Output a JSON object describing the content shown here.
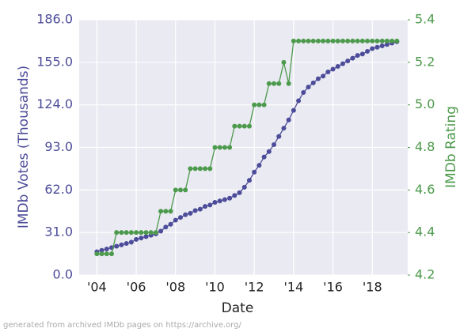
{
  "chart_data": {
    "type": "line",
    "x_label": "Date",
    "y_label": "IMDb Votes (Thousands)",
    "y2_label": "IMDb Rating",
    "footer": "generated from archived IMDb pages on https://archive.org/",
    "x": [
      2004,
      2004.25,
      2004.5,
      2004.75,
      2005,
      2005.25,
      2005.5,
      2005.75,
      2006,
      2006.25,
      2006.5,
      2006.75,
      2007,
      2007.25,
      2007.5,
      2007.75,
      2008,
      2008.25,
      2008.5,
      2008.75,
      2009,
      2009.25,
      2009.5,
      2009.75,
      2010,
      2010.25,
      2010.5,
      2010.75,
      2011,
      2011.25,
      2011.5,
      2011.75,
      2012,
      2012.25,
      2012.5,
      2012.75,
      2013,
      2013.25,
      2013.5,
      2013.75,
      2014,
      2014.25,
      2014.5,
      2014.75,
      2015,
      2015.25,
      2015.5,
      2015.75,
      2016,
      2016.25,
      2016.5,
      2016.75,
      2017,
      2017.25,
      2017.5,
      2017.75,
      2018,
      2018.25,
      2018.5,
      2018.75,
      2019,
      2019.25
    ],
    "series": [
      {
        "name": "IMDb Votes (Thousands)",
        "color": "#4c4c9a",
        "values": [
          17,
          18,
          19,
          20,
          21,
          22,
          23,
          24,
          26,
          27,
          28,
          29,
          30,
          32,
          35,
          37,
          40,
          42,
          44,
          45,
          47,
          48,
          50,
          51,
          53,
          54,
          55,
          56,
          58,
          60,
          64,
          69,
          75,
          80,
          86,
          90,
          95,
          101,
          107,
          113,
          120,
          127,
          133,
          137,
          140,
          143,
          145,
          148,
          150,
          152,
          154,
          156,
          158,
          160,
          161,
          163,
          165,
          166,
          167,
          168,
          169,
          170
        ]
      },
      {
        "name": "IMDb Rating",
        "color": "#4c9a4c",
        "axis": "y2",
        "values": [
          4.3,
          4.3,
          4.3,
          4.3,
          4.4,
          4.4,
          4.4,
          4.4,
          4.4,
          4.4,
          4.4,
          4.4,
          4.4,
          4.5,
          4.5,
          4.5,
          4.6,
          4.6,
          4.6,
          4.7,
          4.7,
          4.7,
          4.7,
          4.7,
          4.8,
          4.8,
          4.8,
          4.8,
          4.9,
          4.9,
          4.9,
          4.9,
          5.0,
          5.0,
          5.0,
          5.1,
          5.1,
          5.1,
          5.2,
          5.1,
          5.3,
          5.3,
          5.3,
          5.3,
          5.3,
          5.3,
          5.3,
          5.3,
          5.3,
          5.3,
          5.3,
          5.3,
          5.3,
          5.3,
          5.3,
          5.3,
          5.3,
          5.3,
          5.3,
          5.3,
          5.3,
          5.3
        ]
      }
    ],
    "xlim": [
      2003.1,
      2019.8
    ],
    "xticks": [
      {
        "value": 2004,
        "label": "'04"
      },
      {
        "value": 2006,
        "label": "'06"
      },
      {
        "value": 2008,
        "label": "'08"
      },
      {
        "value": 2010,
        "label": "'10"
      },
      {
        "value": 2012,
        "label": "'12"
      },
      {
        "value": 2014,
        "label": "'14"
      },
      {
        "value": 2016,
        "label": "'16"
      },
      {
        "value": 2018,
        "label": "'18"
      }
    ],
    "ylim": [
      0,
      186
    ],
    "yticks": [
      {
        "value": 0,
        "label": "0.0"
      },
      {
        "value": 31,
        "label": "31.0"
      },
      {
        "value": 62,
        "label": "62.0"
      },
      {
        "value": 93,
        "label": "93.0"
      },
      {
        "value": 124,
        "label": "124.0"
      },
      {
        "value": 155,
        "label": "155.0"
      },
      {
        "value": 186,
        "label": "186.0"
      }
    ],
    "y2lim": [
      4.2,
      5.4
    ],
    "y2ticks": [
      {
        "value": 4.2,
        "label": "4.2"
      },
      {
        "value": 4.4,
        "label": "4.4"
      },
      {
        "value": 4.6,
        "label": "4.6"
      },
      {
        "value": 4.8,
        "label": "4.8"
      },
      {
        "value": 5.0,
        "label": "5.0"
      },
      {
        "value": 5.2,
        "label": "5.2"
      },
      {
        "value": 5.4,
        "label": "5.4"
      }
    ],
    "grid": true
  }
}
